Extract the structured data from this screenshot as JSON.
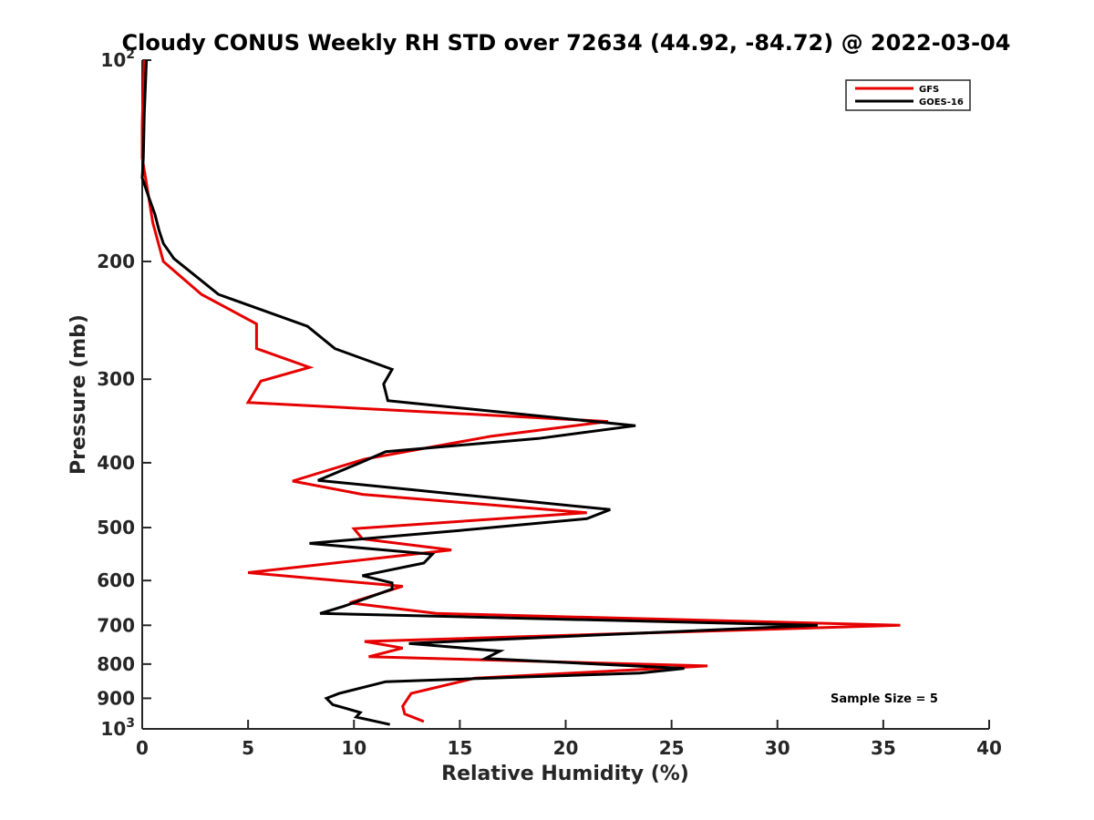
{
  "chart_data": {
    "type": "line",
    "title": "Cloudy CONUS Weekly RH STD over 72634 (44.92, -84.72) @ 2022-03-04",
    "xlabel": "Relative Humidity (%)",
    "ylabel": "Pressure (mb)",
    "xlim": [
      0,
      40
    ],
    "ylim": [
      100,
      1000
    ],
    "y_scale": "log",
    "y_reversed": true,
    "x_ticks": [
      0,
      5,
      10,
      15,
      20,
      25,
      30,
      35,
      40
    ],
    "x_tick_labels": [
      "0",
      "5",
      "10",
      "15",
      "20",
      "25",
      "30",
      "35",
      "40"
    ],
    "y_ticks": [
      100,
      200,
      300,
      400,
      500,
      600,
      700,
      800,
      900,
      1000
    ],
    "y_tick_labels": [
      {
        "base": "10",
        "exp": "2"
      },
      {
        "base": "200",
        "exp": ""
      },
      {
        "base": "300",
        "exp": ""
      },
      {
        "base": "400",
        "exp": ""
      },
      {
        "base": "500",
        "exp": ""
      },
      {
        "base": "600",
        "exp": ""
      },
      {
        "base": "700",
        "exp": ""
      },
      {
        "base": "800",
        "exp": ""
      },
      {
        "base": "900",
        "exp": ""
      },
      {
        "base": "10",
        "exp": "3"
      }
    ],
    "grid": false,
    "legend_position": "top-right",
    "annotation": "Sample Size = 5",
    "series": [
      {
        "name": "GFS",
        "color": "#e60000",
        "points": [
          [
            0.1,
            100
          ],
          [
            0.05,
            110
          ],
          [
            0.0,
            125
          ],
          [
            0.0,
            140
          ],
          [
            0.3,
            160
          ],
          [
            0.5,
            175
          ],
          [
            1.0,
            200
          ],
          [
            2.8,
            224
          ],
          [
            5.4,
            248
          ],
          [
            5.4,
            270
          ],
          [
            7.9,
            288
          ],
          [
            5.6,
            302
          ],
          [
            5.0,
            325
          ],
          [
            22.0,
            347
          ],
          [
            16.5,
            365
          ],
          [
            10.5,
            395
          ],
          [
            7.1,
            426
          ],
          [
            10.4,
            446
          ],
          [
            21.0,
            475
          ],
          [
            10.0,
            502
          ],
          [
            10.4,
            520
          ],
          [
            14.6,
            540
          ],
          [
            5.0,
            584
          ],
          [
            12.3,
            612
          ],
          [
            9.8,
            648
          ],
          [
            13.9,
            672
          ],
          [
            35.8,
            700
          ],
          [
            10.5,
            740
          ],
          [
            12.3,
            757
          ],
          [
            10.7,
            780
          ],
          [
            26.7,
            805
          ],
          [
            15.7,
            840
          ],
          [
            12.7,
            885
          ],
          [
            12.3,
            925
          ],
          [
            12.4,
            950
          ],
          [
            13.3,
            975
          ]
        ]
      },
      {
        "name": "GOES-16",
        "color": "#000000",
        "points": [
          [
            0.2,
            100
          ],
          [
            0.1,
            120
          ],
          [
            0.05,
            140
          ],
          [
            0.0,
            150
          ],
          [
            0.3,
            160
          ],
          [
            0.6,
            170
          ],
          [
            0.8,
            180
          ],
          [
            1.0,
            188
          ],
          [
            1.5,
            198
          ],
          [
            3.6,
            224
          ],
          [
            7.8,
            250
          ],
          [
            9.1,
            270
          ],
          [
            11.8,
            290
          ],
          [
            11.4,
            305
          ],
          [
            11.6,
            323
          ],
          [
            23.3,
            352
          ],
          [
            18.7,
            368
          ],
          [
            11.5,
            385
          ],
          [
            10.3,
            400
          ],
          [
            8.3,
            425
          ],
          [
            22.1,
            470
          ],
          [
            21.0,
            485
          ],
          [
            15.0,
            505
          ],
          [
            7.9,
            528
          ],
          [
            13.7,
            548
          ],
          [
            13.3,
            565
          ],
          [
            10.4,
            590
          ],
          [
            11.8,
            605
          ],
          [
            11.8,
            618
          ],
          [
            9.5,
            656
          ],
          [
            8.4,
            672
          ],
          [
            31.9,
            700
          ],
          [
            12.6,
            745
          ],
          [
            16.9,
            765
          ],
          [
            16.2,
            785
          ],
          [
            25.6,
            812
          ],
          [
            23.5,
            825
          ],
          [
            11.5,
            850
          ],
          [
            9.3,
            885
          ],
          [
            8.7,
            900
          ],
          [
            9.0,
            920
          ],
          [
            10.3,
            945
          ],
          [
            10.1,
            960
          ],
          [
            11.7,
            985
          ]
        ]
      }
    ]
  }
}
